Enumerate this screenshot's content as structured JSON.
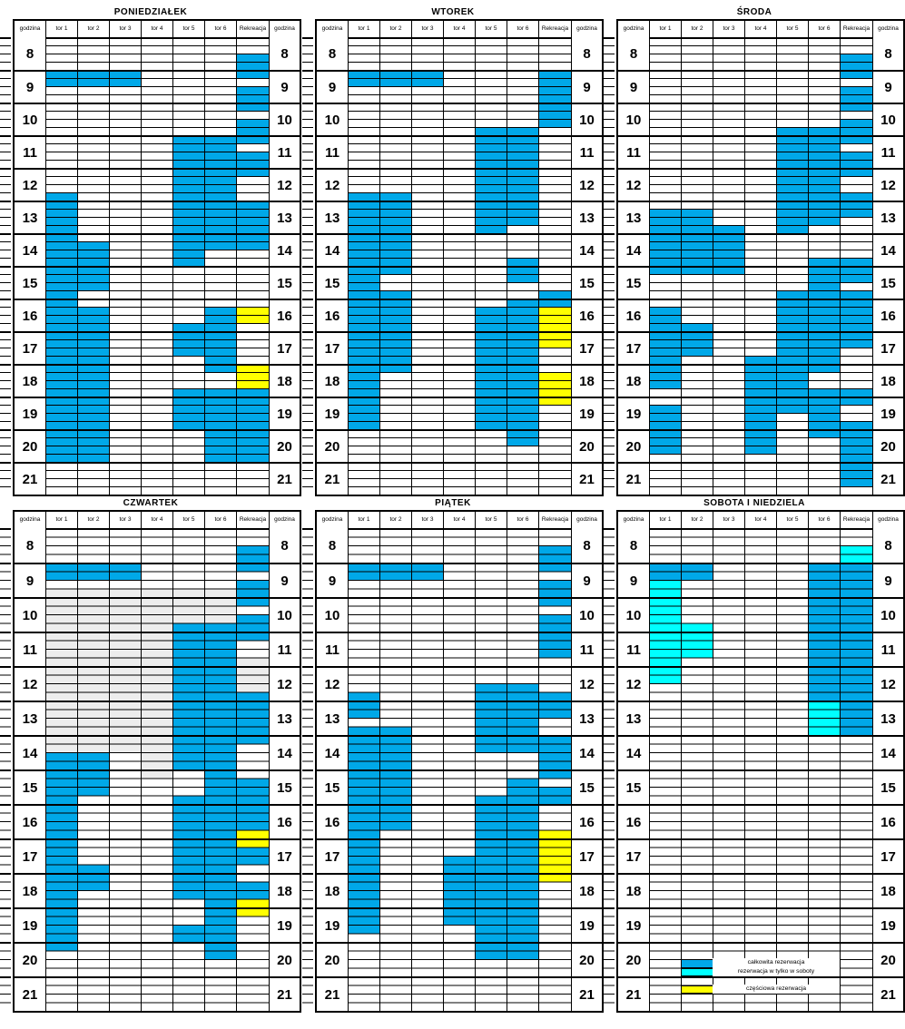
{
  "schedule": {
    "column_headers": [
      "godzina",
      "tor 1",
      "tor 2",
      "tor 3",
      "tor 4",
      "tor 5",
      "tor 6",
      "Rekreacja",
      "godzina"
    ],
    "hour_labels": [
      8,
      9,
      10,
      11,
      12,
      13,
      14,
      15,
      16,
      17,
      18,
      19,
      20,
      21
    ],
    "time_start": "8:00",
    "time_end": "22:00",
    "minutes_per_row": 15
  },
  "colors": {
    "full_reservation": "#00A8E8",
    "saturday_only": "#00FFFF",
    "partial_reservation": "#FFFF00",
    "unavailable_gray": "#EDEDED",
    "grid_line": "#000000"
  },
  "legend": {
    "items": [
      {
        "type": "full",
        "label": "całkowita rezerwacja",
        "time": "20:30"
      },
      {
        "type": "saturday",
        "label": "rezerwacja w tylko w soboty",
        "time": "20:45"
      },
      {
        "type": "partial",
        "label": "częściowa rezerwacja",
        "time": "21:15"
      }
    ]
  },
  "days": [
    {
      "title": "PONIEDZIAŁEK",
      "blocks": [
        {
          "col": "tor1",
          "from": "9:00",
          "to": "9:30",
          "type": "full"
        },
        {
          "col": "tor1",
          "from": "12:45",
          "to": "21:00",
          "type": "full"
        },
        {
          "col": "tor2",
          "from": "9:00",
          "to": "9:30",
          "type": "full"
        },
        {
          "col": "tor2",
          "from": "14:15",
          "to": "15:45",
          "type": "full"
        },
        {
          "col": "tor2",
          "from": "16:15",
          "to": "21:00",
          "type": "full"
        },
        {
          "col": "tor3",
          "from": "9:00",
          "to": "9:30",
          "type": "full"
        },
        {
          "col": "tor5",
          "from": "11:00",
          "to": "15:00",
          "type": "full"
        },
        {
          "col": "tor5",
          "from": "16:45",
          "to": "17:45",
          "type": "full"
        },
        {
          "col": "tor5",
          "from": "18:45",
          "to": "20:00",
          "type": "full"
        },
        {
          "col": "tor6",
          "from": "11:00",
          "to": "14:30",
          "type": "full"
        },
        {
          "col": "tor6",
          "from": "16:15",
          "to": "18:15",
          "type": "full"
        },
        {
          "col": "tor6",
          "from": "18:45",
          "to": "21:00",
          "type": "full"
        },
        {
          "col": "rekreacja",
          "from": "8:30",
          "to": "9:15",
          "type": "full"
        },
        {
          "col": "rekreacja",
          "from": "9:30",
          "to": "10:15",
          "type": "full"
        },
        {
          "col": "rekreacja",
          "from": "10:30",
          "to": "11:15",
          "type": "full"
        },
        {
          "col": "rekreacja",
          "from": "11:30",
          "to": "12:15",
          "type": "full"
        },
        {
          "col": "rekreacja",
          "from": "13:00",
          "to": "14:30",
          "type": "full"
        },
        {
          "col": "rekreacja",
          "from": "16:15",
          "to": "16:45",
          "type": "partial"
        },
        {
          "col": "rekreacja",
          "from": "18:00",
          "to": "18:45",
          "type": "partial"
        },
        {
          "col": "rekreacja",
          "from": "18:45",
          "to": "21:00",
          "type": "full"
        }
      ]
    },
    {
      "title": "WTOREK",
      "blocks": [
        {
          "col": "tor1",
          "from": "9:00",
          "to": "9:30",
          "type": "full"
        },
        {
          "col": "tor1",
          "from": "12:45",
          "to": "20:00",
          "type": "full"
        },
        {
          "col": "tor2",
          "from": "9:00",
          "to": "9:30",
          "type": "full"
        },
        {
          "col": "tor2",
          "from": "12:45",
          "to": "15:15",
          "type": "full"
        },
        {
          "col": "tor2",
          "from": "15:45",
          "to": "18:15",
          "type": "full"
        },
        {
          "col": "tor3",
          "from": "9:00",
          "to": "9:30",
          "type": "full"
        },
        {
          "col": "tor5",
          "from": "10:45",
          "to": "14:00",
          "type": "full"
        },
        {
          "col": "tor5",
          "from": "16:15",
          "to": "20:00",
          "type": "full"
        },
        {
          "col": "tor6",
          "from": "10:45",
          "to": "13:45",
          "type": "full"
        },
        {
          "col": "tor6",
          "from": "14:45",
          "to": "15:30",
          "type": "full"
        },
        {
          "col": "tor6",
          "from": "16:00",
          "to": "20:30",
          "type": "full"
        },
        {
          "col": "rekreacja",
          "from": "9:00",
          "to": "10:45",
          "type": "full"
        },
        {
          "col": "rekreacja",
          "from": "15:45",
          "to": "16:15",
          "type": "full"
        },
        {
          "col": "rekreacja",
          "from": "16:15",
          "to": "17:30",
          "type": "partial"
        },
        {
          "col": "rekreacja",
          "from": "18:15",
          "to": "19:15",
          "type": "partial"
        }
      ]
    },
    {
      "title": "ŚRODA",
      "blocks": [
        {
          "col": "tor1",
          "from": "13:15",
          "to": "15:15",
          "type": "full"
        },
        {
          "col": "tor1",
          "from": "16:15",
          "to": "18:45",
          "type": "full"
        },
        {
          "col": "tor1",
          "from": "19:15",
          "to": "20:45",
          "type": "full"
        },
        {
          "col": "tor2",
          "from": "13:15",
          "to": "15:15",
          "type": "full"
        },
        {
          "col": "tor2",
          "from": "16:45",
          "to": "17:45",
          "type": "full"
        },
        {
          "col": "tor3",
          "from": "13:45",
          "to": "15:15",
          "type": "full"
        },
        {
          "col": "tor4",
          "from": "17:45",
          "to": "20:45",
          "type": "full"
        },
        {
          "col": "tor5",
          "from": "10:45",
          "to": "14:00",
          "type": "full"
        },
        {
          "col": "tor5",
          "from": "15:45",
          "to": "19:30",
          "type": "full"
        },
        {
          "col": "tor6",
          "from": "10:45",
          "to": "13:45",
          "type": "full"
        },
        {
          "col": "tor6",
          "from": "14:45",
          "to": "18:15",
          "type": "full"
        },
        {
          "col": "tor6",
          "from": "18:45",
          "to": "20:15",
          "type": "full"
        },
        {
          "col": "rekreacja",
          "from": "8:30",
          "to": "9:15",
          "type": "full"
        },
        {
          "col": "rekreacja",
          "from": "9:30",
          "to": "10:15",
          "type": "full"
        },
        {
          "col": "rekreacja",
          "from": "10:30",
          "to": "11:15",
          "type": "full"
        },
        {
          "col": "rekreacja",
          "from": "11:30",
          "to": "12:15",
          "type": "full"
        },
        {
          "col": "rekreacja",
          "from": "12:45",
          "to": "13:30",
          "type": "full"
        },
        {
          "col": "rekreacja",
          "from": "14:45",
          "to": "15:30",
          "type": "full"
        },
        {
          "col": "rekreacja",
          "from": "15:45",
          "to": "17:30",
          "type": "full"
        },
        {
          "col": "rekreacja",
          "from": "18:45",
          "to": "19:15",
          "type": "full"
        },
        {
          "col": "rekreacja",
          "from": "19:45",
          "to": "21:45",
          "type": "full"
        }
      ]
    },
    {
      "title": "CZWARTEK",
      "blocks": [
        {
          "col": "tor1",
          "from": "9:45",
          "to": "14:30",
          "type": "gray"
        },
        {
          "col": "tor2",
          "from": "9:45",
          "to": "14:30",
          "type": "gray"
        },
        {
          "col": "tor3",
          "from": "9:45",
          "to": "14:30",
          "type": "gray"
        },
        {
          "col": "tor4",
          "from": "9:45",
          "to": "15:15",
          "type": "gray"
        },
        {
          "col": "tor5",
          "from": "9:45",
          "to": "10:45",
          "type": "gray"
        },
        {
          "col": "tor6",
          "from": "9:45",
          "to": "10:45",
          "type": "gray"
        },
        {
          "col": "rekreacja",
          "from": "11:45",
          "to": "12:45",
          "type": "gray"
        },
        {
          "col": "tor1",
          "from": "9:00",
          "to": "9:30",
          "type": "full"
        },
        {
          "col": "tor1",
          "from": "14:30",
          "to": "20:15",
          "type": "full"
        },
        {
          "col": "tor2",
          "from": "9:00",
          "to": "9:30",
          "type": "full"
        },
        {
          "col": "tor2",
          "from": "14:30",
          "to": "15:45",
          "type": "full"
        },
        {
          "col": "tor2",
          "from": "17:45",
          "to": "18:30",
          "type": "full"
        },
        {
          "col": "tor3",
          "from": "9:00",
          "to": "9:30",
          "type": "full"
        },
        {
          "col": "tor5",
          "from": "10:45",
          "to": "15:00",
          "type": "full"
        },
        {
          "col": "tor5",
          "from": "15:45",
          "to": "18:45",
          "type": "full"
        },
        {
          "col": "tor5",
          "from": "19:30",
          "to": "20:00",
          "type": "full"
        },
        {
          "col": "tor6",
          "from": "10:45",
          "to": "20:30",
          "type": "full"
        },
        {
          "col": "rekreacja",
          "from": "8:30",
          "to": "9:15",
          "type": "full"
        },
        {
          "col": "rekreacja",
          "from": "9:30",
          "to": "10:15",
          "type": "full"
        },
        {
          "col": "rekreacja",
          "from": "10:30",
          "to": "11:15",
          "type": "full"
        },
        {
          "col": "rekreacja",
          "from": "12:45",
          "to": "14:15",
          "type": "full"
        },
        {
          "col": "rekreacja",
          "from": "15:15",
          "to": "16:45",
          "type": "full"
        },
        {
          "col": "rekreacja",
          "from": "16:45",
          "to": "17:15",
          "type": "partial"
        },
        {
          "col": "rekreacja",
          "from": "17:15",
          "to": "17:45",
          "type": "full"
        },
        {
          "col": "rekreacja",
          "from": "18:15",
          "to": "18:45",
          "type": "full"
        },
        {
          "col": "rekreacja",
          "from": "18:45",
          "to": "19:15",
          "type": "partial"
        }
      ]
    },
    {
      "title": "PIĄTEK",
      "blocks": [
        {
          "col": "tor1",
          "from": "9:00",
          "to": "9:30",
          "type": "full"
        },
        {
          "col": "tor1",
          "from": "12:45",
          "to": "13:30",
          "type": "full"
        },
        {
          "col": "tor1",
          "from": "13:45",
          "to": "19:45",
          "type": "full"
        },
        {
          "col": "tor2",
          "from": "9:00",
          "to": "9:30",
          "type": "full"
        },
        {
          "col": "tor2",
          "from": "13:45",
          "to": "16:45",
          "type": "full"
        },
        {
          "col": "tor3",
          "from": "9:00",
          "to": "9:30",
          "type": "full"
        },
        {
          "col": "tor4",
          "from": "17:30",
          "to": "19:30",
          "type": "full"
        },
        {
          "col": "tor5",
          "from": "12:30",
          "to": "14:30",
          "type": "full"
        },
        {
          "col": "tor5",
          "from": "15:45",
          "to": "20:30",
          "type": "full"
        },
        {
          "col": "tor6",
          "from": "12:30",
          "to": "14:30",
          "type": "full"
        },
        {
          "col": "tor6",
          "from": "15:15",
          "to": "20:30",
          "type": "full"
        },
        {
          "col": "rekreacja",
          "from": "8:30",
          "to": "9:15",
          "type": "full"
        },
        {
          "col": "rekreacja",
          "from": "9:30",
          "to": "10:15",
          "type": "full"
        },
        {
          "col": "rekreacja",
          "from": "10:30",
          "to": "11:45",
          "type": "full"
        },
        {
          "col": "rekreacja",
          "from": "12:45",
          "to": "13:30",
          "type": "full"
        },
        {
          "col": "rekreacja",
          "from": "14:00",
          "to": "15:15",
          "type": "full"
        },
        {
          "col": "rekreacja",
          "from": "15:30",
          "to": "16:00",
          "type": "full"
        },
        {
          "col": "rekreacja",
          "from": "16:45",
          "to": "18:15",
          "type": "partial"
        }
      ]
    },
    {
      "title": "SOBOTA I NIEDZIELA",
      "has_legend": true,
      "blocks": [
        {
          "col": "tor1",
          "from": "9:00",
          "to": "9:30",
          "type": "full"
        },
        {
          "col": "tor1",
          "from": "9:30",
          "to": "12:30",
          "type": "saturday"
        },
        {
          "col": "tor2",
          "from": "9:00",
          "to": "9:30",
          "type": "full"
        },
        {
          "col": "tor2",
          "from": "10:45",
          "to": "11:45",
          "type": "saturday"
        },
        {
          "col": "tor6",
          "from": "9:00",
          "to": "13:00",
          "type": "full"
        },
        {
          "col": "tor6",
          "from": "13:00",
          "to": "14:00",
          "type": "saturday"
        },
        {
          "col": "rekreacja",
          "from": "8:30",
          "to": "9:00",
          "type": "saturday"
        },
        {
          "col": "rekreacja",
          "from": "9:00",
          "to": "14:00",
          "type": "full"
        }
      ]
    }
  ]
}
